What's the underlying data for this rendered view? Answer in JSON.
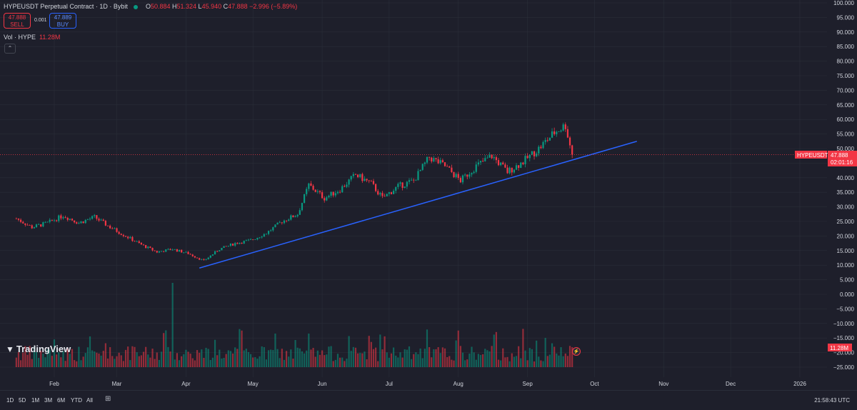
{
  "header": {
    "symbol_title": "HYPEUSDT Perpetual Contract · 1D · Bybit",
    "o_label": "O",
    "o_value": "50.884",
    "h_label": "H",
    "h_value": "51.324",
    "l_label": "L",
    "l_value": "45.940",
    "c_label": "C",
    "c_value": "47.888",
    "change": "−2.996 (−5.89%)"
  },
  "trade": {
    "sell_price": "47.888",
    "sell_label": "SELL",
    "spread": "0.001",
    "buy_price": "47.889",
    "buy_label": "BUY"
  },
  "volume_legend": {
    "label": "Vol · HYPE",
    "value": "11.28M"
  },
  "price_tag": {
    "symbol": "HYPEUSDT.P",
    "price": "47.888",
    "countdown": "02:01:16"
  },
  "volume_tag": "11.28M",
  "logo": "TradingView",
  "time_ranges": [
    "1D",
    "5D",
    "1M",
    "3M",
    "6M",
    "YTD",
    "All"
  ],
  "clock": "21:58:43 UTC",
  "colors": {
    "up": "#089981",
    "down": "#f23645",
    "trendline": "#2962ff",
    "background": "#1e1f2b"
  },
  "chart_data": {
    "type": "candlestick",
    "symbol": "HYPEUSDT.P",
    "interval": "1D",
    "y_axis_ticks": [
      "100.000",
      "95.000",
      "90.000",
      "85.000",
      "80.000",
      "75.000",
      "70.000",
      "65.000",
      "60.000",
      "55.000",
      "50.000",
      "45.000",
      "40.000",
      "35.000",
      "30.000",
      "25.000",
      "20.000",
      "15.000",
      "10.000",
      "5.000",
      "0.000",
      "−5.000",
      "−10.000",
      "−15.000",
      "−20.000",
      "−25.000"
    ],
    "y_axis_values": [
      100,
      95,
      90,
      85,
      80,
      75,
      70,
      65,
      60,
      55,
      50,
      45,
      40,
      35,
      30,
      25,
      20,
      15,
      10,
      5,
      0,
      -5,
      -10,
      -15,
      -20,
      -25
    ],
    "x_axis_ticks": [
      "Feb",
      "Mar",
      "Apr",
      "May",
      "Jun",
      "Jul",
      "Aug",
      "Sep",
      "Oct",
      "Nov",
      "Dec",
      "2026"
    ],
    "last_price": 47.888,
    "close_path": [
      {
        "date": "2025-01-15",
        "price": 26
      },
      {
        "date": "2025-01-22",
        "price": 23
      },
      {
        "date": "2025-01-29",
        "price": 24.5
      },
      {
        "date": "2025-02-05",
        "price": 27
      },
      {
        "date": "2025-02-12",
        "price": 24.5
      },
      {
        "date": "2025-02-19",
        "price": 26.5
      },
      {
        "date": "2025-02-26",
        "price": 23
      },
      {
        "date": "2025-03-05",
        "price": 20
      },
      {
        "date": "2025-03-12",
        "price": 17
      },
      {
        "date": "2025-03-19",
        "price": 14.5
      },
      {
        "date": "2025-03-26",
        "price": 15.5
      },
      {
        "date": "2025-04-02",
        "price": 14
      },
      {
        "date": "2025-04-09",
        "price": 11.5
      },
      {
        "date": "2025-04-16",
        "price": 15.5
      },
      {
        "date": "2025-04-23",
        "price": 17.5
      },
      {
        "date": "2025-04-30",
        "price": 18.5
      },
      {
        "date": "2025-05-07",
        "price": 21
      },
      {
        "date": "2025-05-14",
        "price": 25
      },
      {
        "date": "2025-05-21",
        "price": 27.5
      },
      {
        "date": "2025-05-26",
        "price": 37.5
      },
      {
        "date": "2025-06-02",
        "price": 33
      },
      {
        "date": "2025-06-09",
        "price": 36
      },
      {
        "date": "2025-06-16",
        "price": 41
      },
      {
        "date": "2025-06-23",
        "price": 38
      },
      {
        "date": "2025-06-28",
        "price": 33
      },
      {
        "date": "2025-07-05",
        "price": 37
      },
      {
        "date": "2025-07-12",
        "price": 39
      },
      {
        "date": "2025-07-19",
        "price": 47
      },
      {
        "date": "2025-07-26",
        "price": 44
      },
      {
        "date": "2025-08-02",
        "price": 39
      },
      {
        "date": "2025-08-09",
        "price": 44
      },
      {
        "date": "2025-08-16",
        "price": 47.5
      },
      {
        "date": "2025-08-23",
        "price": 42
      },
      {
        "date": "2025-08-30",
        "price": 45.5
      },
      {
        "date": "2025-09-06",
        "price": 50
      },
      {
        "date": "2025-09-13",
        "price": 55.5
      },
      {
        "date": "2025-09-18",
        "price": 58
      },
      {
        "date": "2025-09-21",
        "price": 47.888
      }
    ],
    "volume_peak_date": "2025-03-26",
    "trendline": {
      "start": {
        "date": "2025-04-07",
        "price": 9
      },
      "end": {
        "date": "2025-10-20",
        "price": 52.5
      }
    }
  }
}
